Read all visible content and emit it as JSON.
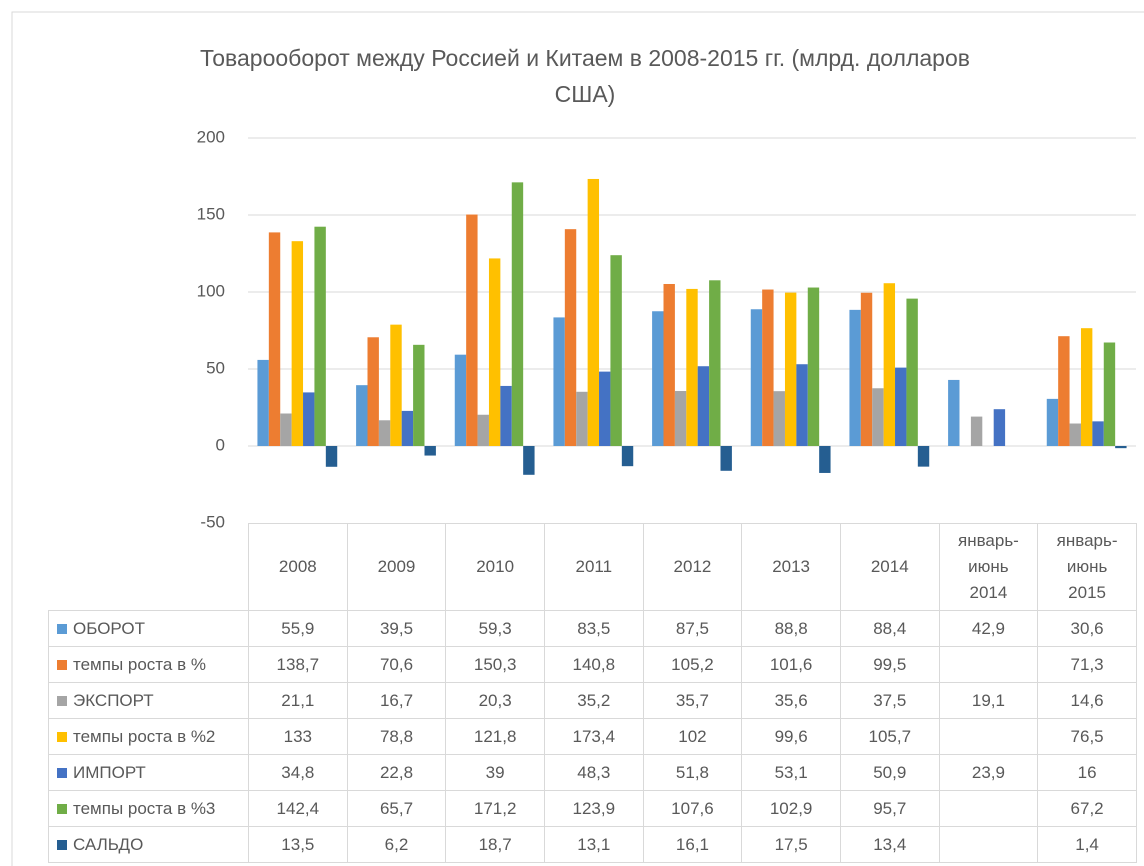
{
  "chart_data": {
    "type": "bar",
    "title": "Товарооборот между Россией и Китаем в 2008-2015 гг.  (млрд. долларов США)",
    "categories": [
      "2008",
      "2009",
      "2010",
      "2011",
      "2012",
      "2013",
      "2014",
      "январь-июнь 2014",
      "январь-июнь 2015"
    ],
    "ylim": [
      -50,
      200
    ],
    "yticks": [
      -50,
      0,
      50,
      100,
      150,
      200
    ],
    "grid": true,
    "series": [
      {
        "name": "ОБОРОТ",
        "color": "#5b9bd5",
        "values": [
          55.9,
          39.5,
          59.3,
          83.5,
          87.5,
          88.8,
          88.4,
          42.9,
          30.6
        ],
        "value_labels": [
          "55,9",
          "39,5",
          "59,3",
          "83,5",
          "87,5",
          "88,8",
          "88,4",
          "42,9",
          "30,6"
        ]
      },
      {
        "name": "темпы роста в %",
        "color": "#ed7d31",
        "values": [
          138.7,
          70.6,
          150.3,
          140.8,
          105.2,
          101.6,
          99.5,
          null,
          71.3
        ],
        "value_labels": [
          "138,7",
          "70,6",
          "150,3",
          "140,8",
          "105,2",
          "101,6",
          "99,5",
          null,
          "71,3"
        ]
      },
      {
        "name": "ЭКСПОРТ",
        "color": "#a5a5a5",
        "values": [
          21.1,
          16.7,
          20.3,
          35.2,
          35.7,
          35.6,
          37.5,
          19.1,
          14.6
        ],
        "value_labels": [
          "21,1",
          "16,7",
          "20,3",
          "35,2",
          "35,7",
          "35,6",
          "37,5",
          "19,1",
          "14,6"
        ]
      },
      {
        "name": "темпы роста в %2",
        "color": "#ffc000",
        "values": [
          133,
          78.8,
          121.8,
          173.4,
          102,
          99.6,
          105.7,
          null,
          76.5
        ],
        "value_labels": [
          "133",
          "78,8",
          "121,8",
          "173,4",
          "102",
          "99,6",
          "105,7",
          null,
          "76,5"
        ]
      },
      {
        "name": "ИМПОРТ",
        "color": "#4472c4",
        "values": [
          34.8,
          22.8,
          39,
          48.3,
          51.8,
          53.1,
          50.9,
          23.9,
          16
        ],
        "value_labels": [
          "34,8",
          "22,8",
          "39",
          "48,3",
          "51,8",
          "53,1",
          "50,9",
          "23,9",
          "16"
        ]
      },
      {
        "name": "темпы роста в %3",
        "color": "#70ad47",
        "values": [
          142.4,
          65.7,
          171.2,
          123.9,
          107.6,
          102.9,
          95.7,
          null,
          67.2
        ],
        "value_labels": [
          "142,4",
          "65,7",
          "171,2",
          "123,9",
          "107,6",
          "102,9",
          "95,7",
          null,
          "67,2"
        ]
      },
      {
        "name": "САЛЬДО",
        "color": "#255e91",
        "values": [
          -13.5,
          -6.2,
          -18.7,
          -13.1,
          -16.1,
          -17.5,
          -13.4,
          null,
          -1.4
        ],
        "value_labels": [
          "13,5",
          "6,2",
          "18,7",
          "13,1",
          "16,1",
          "17,5",
          "13,4",
          null,
          "1,4"
        ]
      }
    ]
  }
}
